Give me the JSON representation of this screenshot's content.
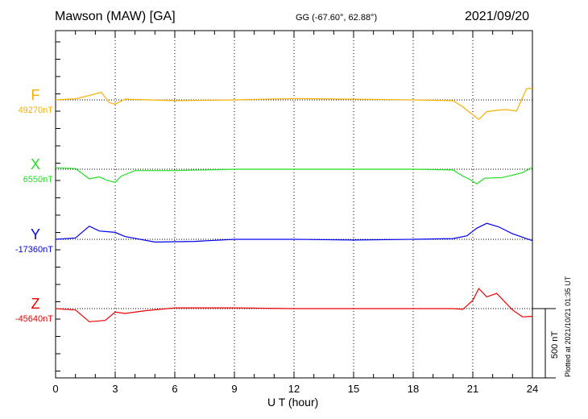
{
  "header": {
    "title": "Mawson (MAW)  [GA]",
    "coords": "GG (-67.60°,  62.88°)",
    "date": "2021/09/20"
  },
  "footer_text": "Plotted at 2021/10/21 01:35 UT",
  "chart_data": {
    "type": "line",
    "xlabel": "U T (hour)",
    "xlim": [
      0,
      24
    ],
    "xticks": [
      "0",
      "3",
      "6",
      "9",
      "12",
      "15",
      "18",
      "21",
      "24"
    ],
    "scale_bar": {
      "label": "500 nT",
      "value_nT": 500
    },
    "grid": "vertical dotted lines at every 3 hours",
    "series": [
      {
        "name": "F",
        "baseline_label": "49270nT",
        "color": "#f5b000",
        "points": [
          [
            0,
            0
          ],
          [
            1,
            8
          ],
          [
            1.5,
            25
          ],
          [
            2.3,
            55
          ],
          [
            2.7,
            -20
          ],
          [
            3,
            -30
          ],
          [
            3.5,
            5
          ],
          [
            6,
            -5
          ],
          [
            9,
            0
          ],
          [
            12,
            10
          ],
          [
            15,
            5
          ],
          [
            18,
            0
          ],
          [
            20,
            -5
          ],
          [
            20.5,
            -50
          ],
          [
            20.8,
            -85
          ],
          [
            21.3,
            -140
          ],
          [
            21.7,
            -85
          ],
          [
            22.2,
            -75
          ],
          [
            22.7,
            -70
          ],
          [
            23.2,
            -80
          ],
          [
            23.7,
            80
          ],
          [
            24,
            85
          ]
        ]
      },
      {
        "name": "X",
        "baseline_label": "6550nT",
        "color": "#22dd22",
        "points": [
          [
            0,
            10
          ],
          [
            1,
            5
          ],
          [
            1.7,
            -70
          ],
          [
            2.2,
            -55
          ],
          [
            2.6,
            -80
          ],
          [
            3,
            -95
          ],
          [
            3.3,
            -50
          ],
          [
            4,
            -10
          ],
          [
            6,
            -10
          ],
          [
            9,
            0
          ],
          [
            12,
            0
          ],
          [
            15,
            0
          ],
          [
            18,
            0
          ],
          [
            20,
            -5
          ],
          [
            20.5,
            -50
          ],
          [
            20.8,
            -70
          ],
          [
            21.2,
            -105
          ],
          [
            21.6,
            -65
          ],
          [
            22.5,
            -60
          ],
          [
            23.5,
            -25
          ],
          [
            24,
            15
          ]
        ]
      },
      {
        "name": "Y",
        "baseline_label": "-17360nT",
        "color": "#0000ee",
        "points": [
          [
            0,
            0
          ],
          [
            1,
            10
          ],
          [
            1.7,
            95
          ],
          [
            2.2,
            60
          ],
          [
            3,
            50
          ],
          [
            3.5,
            20
          ],
          [
            5,
            -20
          ],
          [
            7,
            -15
          ],
          [
            9,
            0
          ],
          [
            12,
            0
          ],
          [
            15,
            -5
          ],
          [
            18,
            0
          ],
          [
            20,
            5
          ],
          [
            20.7,
            25
          ],
          [
            21.2,
            80
          ],
          [
            21.7,
            115
          ],
          [
            22.3,
            90
          ],
          [
            23,
            40
          ],
          [
            24,
            -10
          ]
        ]
      },
      {
        "name": "Z",
        "baseline_label": "-45640nT",
        "color": "#ee0000",
        "points": [
          [
            0,
            0
          ],
          [
            1,
            -10
          ],
          [
            1.7,
            -95
          ],
          [
            2.5,
            -85
          ],
          [
            3,
            -25
          ],
          [
            3.5,
            -35
          ],
          [
            4.5,
            -15
          ],
          [
            6,
            5
          ],
          [
            9,
            5
          ],
          [
            12,
            0
          ],
          [
            15,
            0
          ],
          [
            18,
            0
          ],
          [
            20,
            0
          ],
          [
            20.5,
            -5
          ],
          [
            21,
            60
          ],
          [
            21.3,
            145
          ],
          [
            21.7,
            85
          ],
          [
            22.2,
            110
          ],
          [
            23,
            -10
          ],
          [
            23.5,
            -60
          ],
          [
            24,
            -55
          ]
        ]
      }
    ]
  }
}
